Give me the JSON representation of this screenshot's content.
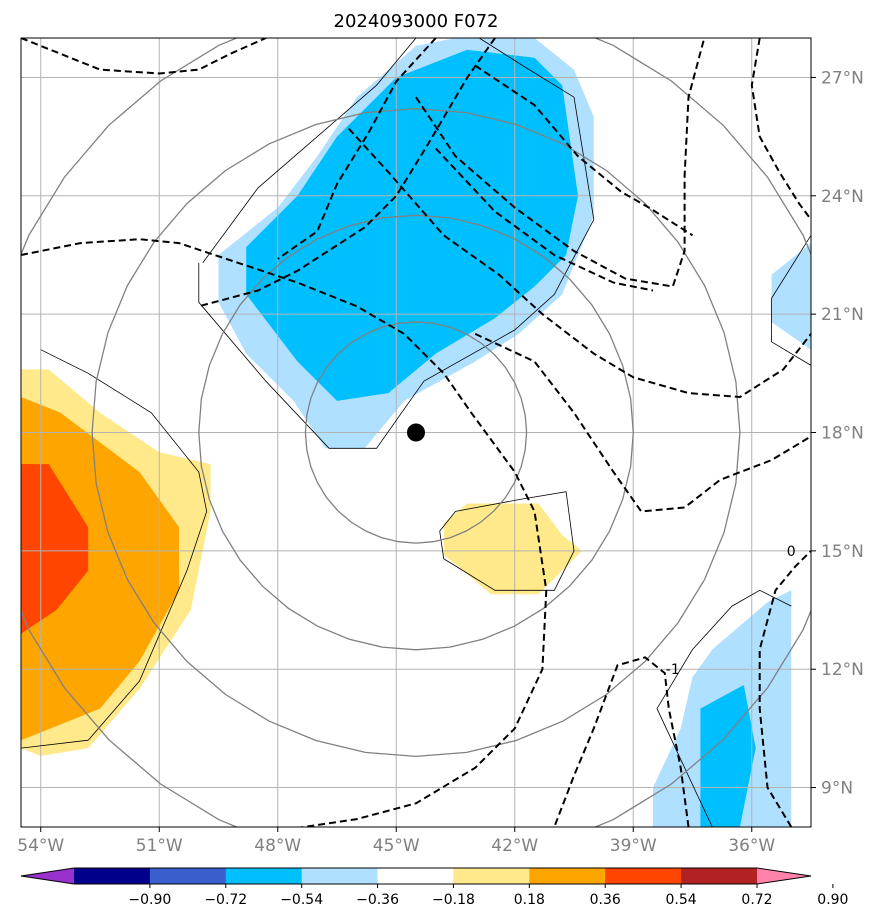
{
  "chart_data": {
    "type": "map-contour",
    "title": "2024093000 F072",
    "lon_ticks": [
      {
        "value": -54,
        "label": "54°W"
      },
      {
        "value": -51,
        "label": "51°W"
      },
      {
        "value": -48,
        "label": "48°W"
      },
      {
        "value": -45,
        "label": "45°W"
      },
      {
        "value": -42,
        "label": "42°W"
      },
      {
        "value": -39,
        "label": "39°W"
      },
      {
        "value": -36,
        "label": "36°W"
      }
    ],
    "lat_ticks": [
      {
        "value": 27,
        "label": "27°N"
      },
      {
        "value": 24,
        "label": "24°N"
      },
      {
        "value": 21,
        "label": "21°N"
      },
      {
        "value": 18,
        "label": "18°N"
      },
      {
        "value": 15,
        "label": "15°N"
      },
      {
        "value": 12,
        "label": "12°N"
      },
      {
        "value": 9,
        "label": "9°N"
      }
    ],
    "lon_range": [
      -54.5,
      -34.5
    ],
    "lat_range": [
      8,
      28
    ],
    "grid": true,
    "center": {
      "lon": -44.5,
      "lat": 18.0
    },
    "range_rings_deg": [
      2.8,
      5.5,
      8.2,
      11.0
    ],
    "contour_labels": [
      {
        "text": "0",
        "lon": -35.0,
        "lat": 15.0
      },
      {
        "text": "-1",
        "lon": -38.0,
        "lat": 12.0
      }
    ],
    "colorbar": {
      "levels": [
        -0.9,
        -0.72,
        -0.54,
        -0.36,
        -0.18,
        0.18,
        0.36,
        0.54,
        0.72,
        0.9
      ],
      "labels": [
        "−0.90",
        "−0.72",
        "−0.54",
        "−0.36",
        "−0.18",
        "0.18",
        "0.36",
        "0.54",
        "0.72",
        "0.90"
      ],
      "colors": [
        "#9932cc",
        "#00008b",
        "#3a5fcd",
        "#00bfff",
        "#b0e0ff",
        "#ffffff",
        "#ffe98a",
        "#ffa500",
        "#ff4500",
        "#b22222",
        "#ff82ab"
      ]
    },
    "filled_regions": [
      {
        "level": "-0.18",
        "color": "#b0e0ff",
        "points": [
          [
            -49.5,
            22.5
          ],
          [
            -48,
            23.7
          ],
          [
            -47,
            25
          ],
          [
            -46,
            26.5
          ],
          [
            -44.5,
            27.8
          ],
          [
            -43.5,
            28
          ],
          [
            -41.5,
            28
          ],
          [
            -40.5,
            27.2
          ],
          [
            -40,
            26
          ],
          [
            -40,
            23.5
          ],
          [
            -40.8,
            21.5
          ],
          [
            -41.9,
            20.5
          ],
          [
            -43,
            19.8
          ],
          [
            -44.8,
            18.8
          ],
          [
            -45.8,
            17.6
          ],
          [
            -46.8,
            17.6
          ],
          [
            -47.6,
            18.8
          ],
          [
            -48.8,
            20
          ],
          [
            -49.5,
            21.3
          ]
        ]
      },
      {
        "level": "-0.36",
        "color": "#00bfff",
        "points": [
          [
            -48.8,
            22.7
          ],
          [
            -47.5,
            24
          ],
          [
            -46.5,
            25.5
          ],
          [
            -45,
            27
          ],
          [
            -43.2,
            27.7
          ],
          [
            -41.5,
            27.5
          ],
          [
            -40.8,
            26.8
          ],
          [
            -40.4,
            24
          ],
          [
            -40.7,
            22.5
          ],
          [
            -41.5,
            21.7
          ],
          [
            -42.5,
            20.9
          ],
          [
            -44,
            20
          ],
          [
            -45.2,
            19
          ],
          [
            -46.5,
            18.8
          ],
          [
            -47.5,
            19.8
          ],
          [
            -48.8,
            21.5
          ]
        ]
      },
      {
        "level": "-0.36",
        "color": "#00bfff",
        "points": [
          [
            -45.05,
            23.2
          ],
          [
            -44.95,
            23.2
          ],
          [
            -45.0,
            22.8
          ]
        ]
      },
      {
        "level": "-0.18",
        "color": "#b0e0ff",
        "points": [
          [
            -35.5,
            22.0
          ],
          [
            -34.5,
            22.8
          ],
          [
            -34.5,
            20.1
          ],
          [
            -35.5,
            20.8
          ]
        ]
      },
      {
        "level": "-0.18",
        "color": "#b0e0ff",
        "points": [
          [
            -38.5,
            8
          ],
          [
            -38.5,
            9
          ],
          [
            -37.8,
            10.5
          ],
          [
            -37.5,
            11.8
          ],
          [
            -37,
            12.5
          ],
          [
            -35.6,
            13.7
          ],
          [
            -35.0,
            14.0
          ],
          [
            -35.0,
            8
          ]
        ]
      },
      {
        "level": "-0.36",
        "color": "#00bfff",
        "points": [
          [
            -37.3,
            8
          ],
          [
            -37.3,
            11.0
          ],
          [
            -36.2,
            11.6
          ],
          [
            -35.9,
            10
          ],
          [
            -36.3,
            8
          ]
        ]
      },
      {
        "level": "0.18",
        "color": "#ffe98a",
        "points": [
          [
            -54.5,
            19.6
          ],
          [
            -53.8,
            19.6
          ],
          [
            -52.5,
            18.5
          ],
          [
            -51,
            17.5
          ],
          [
            -49.7,
            17.2
          ],
          [
            -49.7,
            16
          ],
          [
            -50.2,
            13.5
          ],
          [
            -51.5,
            11.5
          ],
          [
            -52.8,
            10
          ],
          [
            -54.0,
            9.8
          ],
          [
            -54.5,
            10
          ]
        ]
      },
      {
        "level": "0.36",
        "color": "#ffa500",
        "points": [
          [
            -54.5,
            18.9
          ],
          [
            -53.5,
            18.5
          ],
          [
            -51.5,
            17.0
          ],
          [
            -50.5,
            15.6
          ],
          [
            -50.5,
            14
          ],
          [
            -51.5,
            12.2
          ],
          [
            -52.5,
            11
          ],
          [
            -54.5,
            10.2
          ]
        ]
      },
      {
        "level": "0.54",
        "color": "#ff4500",
        "points": [
          [
            -54.5,
            17.2
          ],
          [
            -53.8,
            17.2
          ],
          [
            -52.8,
            15.6
          ],
          [
            -52.8,
            14.5
          ],
          [
            -53.6,
            13.5
          ],
          [
            -54.5,
            12.9
          ]
        ]
      },
      {
        "level": "0.18",
        "color": "#ffe98a",
        "points": [
          [
            -43.8,
            15.7
          ],
          [
            -43.2,
            16.2
          ],
          [
            -41.4,
            16.2
          ],
          [
            -40.8,
            15.4
          ],
          [
            -40.3,
            15.0
          ],
          [
            -41.4,
            13.9
          ],
          [
            -42.6,
            13.9
          ],
          [
            -43.8,
            14.9
          ]
        ]
      }
    ],
    "thin_contours": [
      [
        [
          -49.9,
          22.3
        ],
        [
          -48.5,
          24.2
        ],
        [
          -47,
          25.5
        ],
        [
          -45.5,
          26.8
        ],
        [
          -44.5,
          28
        ]
      ],
      [
        [
          -42.9,
          28
        ],
        [
          -41.8,
          27.3
        ],
        [
          -40.5,
          26.5
        ],
        [
          -40,
          23.4
        ],
        [
          -41,
          21.5
        ],
        [
          -42,
          20.6
        ],
        [
          -44.3,
          19.3
        ],
        [
          -45.5,
          17.6
        ],
        [
          -46.7,
          17.6
        ],
        [
          -48.3,
          19.3
        ],
        [
          -50,
          21.3
        ],
        [
          -50,
          22.3
        ]
      ],
      [
        [
          -43.9,
          15.5
        ],
        [
          -43.5,
          16.0
        ],
        [
          -41.9,
          16.3
        ],
        [
          -40.7,
          16.5
        ],
        [
          -40.5,
          15.0
        ],
        [
          -41.0,
          14.0
        ],
        [
          -42.5,
          14.0
        ],
        [
          -43.8,
          14.8
        ],
        [
          -43.9,
          15.5
        ]
      ],
      [
        [
          -54.5,
          10
        ],
        [
          -52.8,
          10.2
        ],
        [
          -51.5,
          11.7
        ],
        [
          -50.3,
          14.5
        ],
        [
          -49.8,
          16
        ],
        [
          -50,
          17
        ],
        [
          -51.2,
          18.5
        ],
        [
          -52.8,
          19.5
        ],
        [
          -54.0,
          20.1
        ]
      ],
      [
        [
          -37.0,
          8
        ],
        [
          -38.4,
          11
        ],
        [
          -37.5,
          12.5
        ],
        [
          -36.5,
          13.6
        ],
        [
          -35.8,
          14
        ],
        [
          -35.0,
          13.6
        ]
      ],
      [
        [
          -34.5,
          23
        ],
        [
          -35.5,
          21.4
        ],
        [
          -35.5,
          20.3
        ],
        [
          -34.5,
          19.7
        ]
      ]
    ],
    "dashed_contours": [
      [
        [
          -54.5,
          28
        ],
        [
          -53.5,
          27.6
        ],
        [
          -52.5,
          27.2
        ],
        [
          -51,
          27.1
        ],
        [
          -50,
          27.2
        ],
        [
          -49.2,
          27.6
        ],
        [
          -48.3,
          28
        ]
      ],
      [
        [
          -54.5,
          22.5
        ],
        [
          -53,
          22.8
        ],
        [
          -51.5,
          22.9
        ],
        [
          -50.5,
          22.8
        ],
        [
          -49,
          22.3
        ],
        [
          -47.5,
          21.8
        ],
        [
          -46,
          21.2
        ],
        [
          -44.8,
          20.5
        ],
        [
          -43.8,
          19.5
        ],
        [
          -43.1,
          18.5
        ],
        [
          -42,
          17.0
        ],
        [
          -41.5,
          16.0
        ],
        [
          -41.2,
          14.0
        ],
        [
          -41.3,
          12.0
        ],
        [
          -42.0,
          10.5
        ],
        [
          -43.0,
          9.5
        ],
        [
          -44.5,
          8.6
        ],
        [
          -46,
          8.2
        ],
        [
          -48,
          7.9
        ]
      ],
      [
        [
          -44.0,
          28
        ],
        [
          -45.0,
          26.9
        ],
        [
          -45.7,
          25.6
        ],
        [
          -46.5,
          24.3
        ],
        [
          -47.0,
          23.1
        ],
        [
          -48.0,
          22.4
        ]
      ],
      [
        [
          -42.5,
          28
        ],
        [
          -43.2,
          27.0
        ],
        [
          -44.2,
          25.3
        ],
        [
          -45.0,
          24.0
        ],
        [
          -45.8,
          23.2
        ],
        [
          -47.5,
          22.1
        ],
        [
          -48.5,
          21.6
        ],
        [
          -50.0,
          21.2
        ]
      ],
      [
        [
          -46.2,
          25.7
        ],
        [
          -45.2,
          24.6
        ],
        [
          -43.8,
          23.0
        ],
        [
          -42.4,
          22.0
        ],
        [
          -41.3,
          21.0
        ],
        [
          -40,
          20.0
        ],
        [
          -39,
          19.4
        ],
        [
          -37.6,
          19.0
        ],
        [
          -36.3,
          18.9
        ],
        [
          -35.2,
          19.6
        ],
        [
          -34.5,
          20.5
        ]
      ],
      [
        [
          -44.5,
          26.5
        ],
        [
          -43.5,
          25.0
        ],
        [
          -42,
          23.7
        ],
        [
          -40.5,
          22.6
        ],
        [
          -39.2,
          21.9
        ],
        [
          -38.0,
          21.7
        ],
        [
          -37.7,
          22.6
        ],
        [
          -37.7,
          24.5
        ],
        [
          -37.6,
          26.5
        ],
        [
          -37.2,
          28
        ]
      ],
      [
        [
          -43.0,
          27.3
        ],
        [
          -41.5,
          26.3
        ],
        [
          -40.4,
          25
        ],
        [
          -39.3,
          24.1
        ],
        [
          -38.6,
          23.7
        ],
        [
          -37.5,
          23.0
        ]
      ],
      [
        [
          -44.0,
          25.2
        ],
        [
          -42.5,
          23.6
        ],
        [
          -41,
          22.5
        ],
        [
          -39.5,
          21.8
        ],
        [
          -38.5,
          21.6
        ]
      ],
      [
        [
          -35.8,
          28
        ],
        [
          -36.0,
          26.8
        ],
        [
          -35.8,
          25.5
        ],
        [
          -35.3,
          24.6
        ],
        [
          -34.8,
          23.8
        ],
        [
          -34.5,
          23.4
        ]
      ],
      [
        [
          -43,
          20.5
        ],
        [
          -41.5,
          19.8
        ],
        [
          -40.5,
          18.5
        ],
        [
          -39.5,
          17.0
        ],
        [
          -38.8,
          16.0
        ],
        [
          -37.7,
          16.1
        ],
        [
          -36.8,
          16.8
        ],
        [
          -35.5,
          17.3
        ],
        [
          -34.5,
          17.9
        ]
      ],
      [
        [
          -37.6,
          8
        ],
        [
          -37.8,
          9.5
        ],
        [
          -38.1,
          11.0
        ],
        [
          -38.2,
          11.9
        ],
        [
          -38.7,
          12.3
        ],
        [
          -39.4,
          12.1
        ],
        [
          -40.0,
          10.5
        ],
        [
          -40.5,
          9.3
        ],
        [
          -41.0,
          8
        ]
      ],
      [
        [
          -35.0,
          8
        ],
        [
          -35.6,
          9.0
        ],
        [
          -35.8,
          11.0
        ],
        [
          -35.8,
          12.5
        ],
        [
          -35.4,
          14.0
        ],
        [
          -34.9,
          14.6
        ],
        [
          -34.5,
          15.0
        ]
      ]
    ]
  }
}
